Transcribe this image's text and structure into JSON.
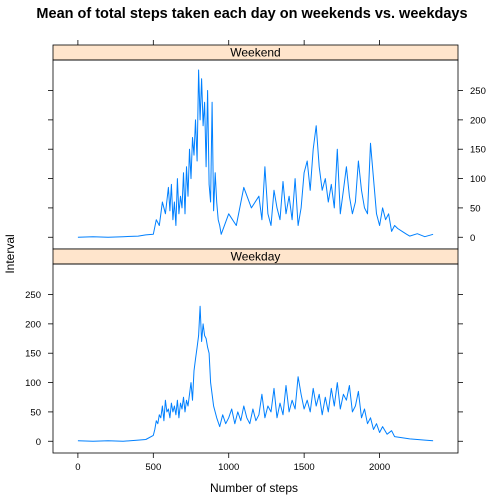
{
  "chart_data": {
    "type": "line",
    "title": "Mean of total steps taken each day on weekends vs. weekdays",
    "xlabel": "Number of steps",
    "ylabel": "Interval",
    "xlim": [
      -165,
      2520
    ],
    "ylim": [
      -20,
      302
    ],
    "x_ticks": [
      0,
      500,
      1000,
      1500,
      2000
    ],
    "y_ticks": [
      0,
      50,
      100,
      150,
      200,
      250
    ],
    "grid": false,
    "legend": "none",
    "line_color": "#0080ff",
    "strip_color": "#ffe5cc",
    "panels": [
      {
        "name": "Weekend",
        "y_axis_side": "right",
        "x": [
          0,
          100,
          200,
          300,
          400,
          450,
          500,
          520,
          540,
          560,
          580,
          600,
          610,
          620,
          630,
          640,
          650,
          660,
          670,
          680,
          690,
          700,
          710,
          720,
          730,
          740,
          750,
          760,
          770,
          780,
          790,
          800,
          810,
          820,
          830,
          840,
          850,
          860,
          870,
          880,
          890,
          900,
          910,
          920,
          930,
          940,
          950,
          1000,
          1050,
          1100,
          1150,
          1200,
          1220,
          1240,
          1260,
          1280,
          1300,
          1320,
          1340,
          1360,
          1380,
          1400,
          1420,
          1440,
          1460,
          1480,
          1500,
          1520,
          1540,
          1560,
          1580,
          1600,
          1620,
          1640,
          1660,
          1680,
          1700,
          1720,
          1740,
          1760,
          1780,
          1800,
          1820,
          1840,
          1860,
          1880,
          1900,
          1920,
          1940,
          1960,
          1980,
          2000,
          2020,
          2040,
          2060,
          2080,
          2100,
          2120,
          2150,
          2180,
          2200,
          2250,
          2300,
          2355
        ],
        "values": [
          0,
          1,
          0,
          1,
          2,
          4,
          5,
          30,
          20,
          60,
          40,
          85,
          45,
          90,
          30,
          60,
          20,
          100,
          40,
          70,
          50,
          110,
          40,
          120,
          70,
          150,
          100,
          170,
          140,
          200,
          130,
          285,
          200,
          270,
          190,
          230,
          120,
          250,
          90,
          60,
          230,
          45,
          110,
          60,
          30,
          20,
          5,
          40,
          20,
          85,
          50,
          70,
          30,
          120,
          40,
          20,
          80,
          50,
          30,
          95,
          40,
          70,
          30,
          100,
          20,
          50,
          110,
          130,
          80,
          150,
          190,
          120,
          80,
          100,
          60,
          90,
          50,
          150,
          40,
          80,
          120,
          70,
          40,
          60,
          130,
          80,
          50,
          40,
          160,
          100,
          40,
          20,
          50,
          30,
          40,
          10,
          20,
          15,
          10,
          5,
          2,
          6,
          1,
          5
        ]
      },
      {
        "name": "Weekday",
        "y_axis_side": "left",
        "x": [
          0,
          100,
          200,
          300,
          400,
          450,
          500,
          510,
          520,
          530,
          540,
          550,
          560,
          570,
          580,
          590,
          600,
          610,
          620,
          630,
          640,
          650,
          660,
          670,
          680,
          690,
          700,
          710,
          720,
          730,
          740,
          750,
          760,
          770,
          780,
          790,
          800,
          810,
          820,
          830,
          840,
          850,
          860,
          870,
          880,
          890,
          900,
          920,
          940,
          960,
          980,
          1000,
          1020,
          1040,
          1060,
          1080,
          1100,
          1120,
          1140,
          1160,
          1180,
          1200,
          1220,
          1240,
          1260,
          1280,
          1300,
          1320,
          1340,
          1360,
          1380,
          1400,
          1420,
          1440,
          1460,
          1480,
          1500,
          1520,
          1540,
          1560,
          1580,
          1600,
          1620,
          1640,
          1660,
          1680,
          1700,
          1720,
          1740,
          1760,
          1780,
          1800,
          1820,
          1840,
          1860,
          1880,
          1900,
          1920,
          1940,
          1960,
          1980,
          2000,
          2020,
          2050,
          2080,
          2100,
          2150,
          2200,
          2250,
          2300,
          2355
        ],
        "values": [
          1,
          0,
          1,
          0,
          2,
          3,
          10,
          20,
          35,
          30,
          45,
          40,
          60,
          35,
          70,
          50,
          55,
          40,
          65,
          50,
          60,
          45,
          70,
          40,
          65,
          55,
          75,
          50,
          70,
          60,
          80,
          100,
          70,
          120,
          140,
          160,
          180,
          230,
          170,
          200,
          180,
          175,
          160,
          150,
          100,
          80,
          60,
          40,
          25,
          45,
          30,
          40,
          55,
          30,
          50,
          35,
          60,
          40,
          30,
          55,
          35,
          45,
          80,
          40,
          60,
          50,
          90,
          40,
          65,
          45,
          95,
          50,
          70,
          55,
          110,
          80,
          55,
          70,
          50,
          90,
          60,
          80,
          45,
          75,
          50,
          90,
          60,
          100,
          55,
          80,
          70,
          95,
          50,
          60,
          85,
          40,
          55,
          30,
          40,
          20,
          30,
          15,
          25,
          12,
          18,
          8,
          6,
          4,
          3,
          2,
          1
        ]
      }
    ]
  }
}
